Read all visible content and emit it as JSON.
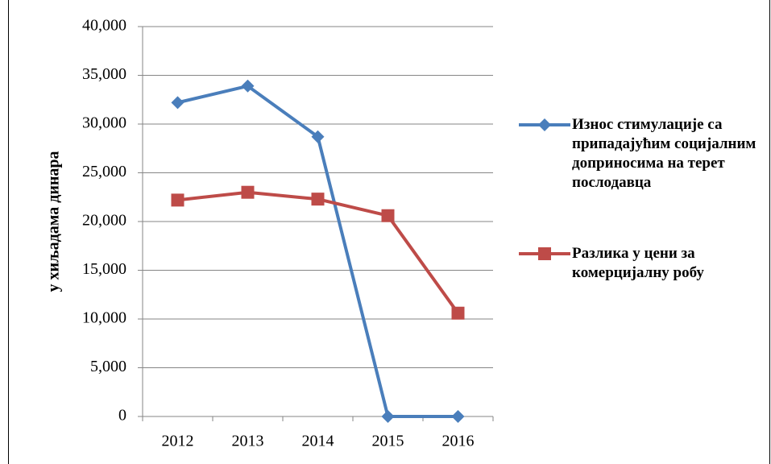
{
  "chart_data": {
    "type": "line",
    "y_label": "у хиљадама динара",
    "categories": [
      "2012",
      "2013",
      "2014",
      "2015",
      "2016"
    ],
    "series": [
      {
        "name": "Износ стимулације са припадајућим социјалним доприносима на терет послодавца",
        "color": "#4a7ebb",
        "marker": "diamond",
        "values": [
          32200,
          33900,
          28700,
          0,
          0
        ]
      },
      {
        "name": "Разлика у цени за комерцијалну робу",
        "color": "#be4b48",
        "marker": "square",
        "values": [
          22200,
          23000,
          22300,
          20600,
          10600
        ]
      }
    ],
    "ylim": [
      0,
      40000
    ],
    "yticks": [
      0,
      {
        "value": 5000,
        "label": "5,000"
      },
      {
        "value": 10000,
        "label": "10,000"
      },
      {
        "value": 15000,
        "label": "15,000"
      },
      {
        "value": 20000,
        "label": "20,000"
      },
      {
        "value": 25000,
        "label": "25,000"
      },
      {
        "value": 30000,
        "label": "30,000"
      },
      {
        "value": 35000,
        "label": "35,000"
      },
      {
        "value": 40000,
        "label": "40,000"
      }
    ],
    "grid": true,
    "legend": "right"
  }
}
